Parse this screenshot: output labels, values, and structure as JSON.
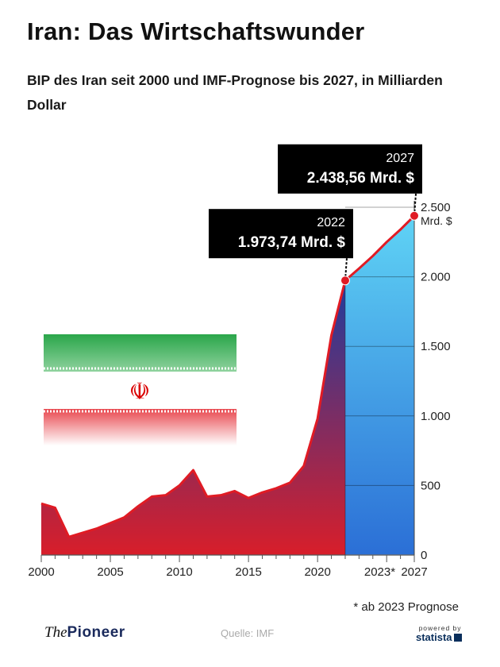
{
  "title": "Iran: Das Wirtschaftswunder",
  "subtitle": "BIP des Iran seit 2000 und IMF-Prognose bis 2027, in Milliarden Dollar",
  "footnote": "* ab 2023 Prognose",
  "brand": {
    "prefix": "The",
    "name": "Pioneer"
  },
  "source": "Quelle: IMF",
  "statista": {
    "powered": "powered by",
    "name": "statista"
  },
  "flag": {
    "emblem": "☫",
    "colors": {
      "green": "#239f40",
      "white": "#ffffff",
      "red": "#da0000"
    }
  },
  "colors": {
    "line": "#e01b24",
    "area_top_blue": "#1f3c9e",
    "area_bottom_red": "#d81e2a",
    "forecast_top": "#5fd3f5",
    "forecast_bottom": "#2b6fd6",
    "callout_bg": "#000000"
  },
  "chart_data": {
    "type": "area",
    "x": [
      2000,
      2001,
      2002,
      2003,
      2004,
      2005,
      2006,
      2007,
      2008,
      2009,
      2010,
      2011,
      2012,
      2013,
      2014,
      2015,
      2016,
      2017,
      2018,
      2019,
      2020,
      2021,
      2022,
      2023,
      2024,
      2025,
      2026,
      2027
    ],
    "values": [
      370,
      340,
      130,
      160,
      190,
      230,
      270,
      350,
      420,
      430,
      500,
      610,
      420,
      430,
      460,
      410,
      450,
      480,
      520,
      640,
      980,
      1580,
      1973.74,
      2060,
      2150,
      2250,
      2340,
      2438.56
    ],
    "forecast_from": 2023,
    "ylim": [
      0,
      2500
    ],
    "yticks": [
      0,
      500,
      1000,
      1500,
      2000,
      2500
    ],
    "ytick_labels": [
      "0",
      "500",
      "1.000",
      "1.500",
      "2.000",
      "2.500"
    ],
    "y_unit_label": "Mrd. $",
    "xtick_labels": [
      {
        "x": 2000,
        "label": "2000"
      },
      {
        "x": 2005,
        "label": "2005"
      },
      {
        "x": 2010,
        "label": "2010"
      },
      {
        "x": 2015,
        "label": "2015"
      },
      {
        "x": 2020,
        "label": "2020"
      },
      {
        "x": 2024.5,
        "label": "2023*"
      },
      {
        "x": 2027,
        "label": "2027"
      }
    ],
    "annotations": [
      {
        "x": 2022,
        "y": 1973.74,
        "year": "2022",
        "value": "1.973,74 Mrd. $"
      },
      {
        "x": 2027,
        "y": 2438.56,
        "year": "2027",
        "value": "2.438,56 Mrd. $"
      }
    ]
  }
}
